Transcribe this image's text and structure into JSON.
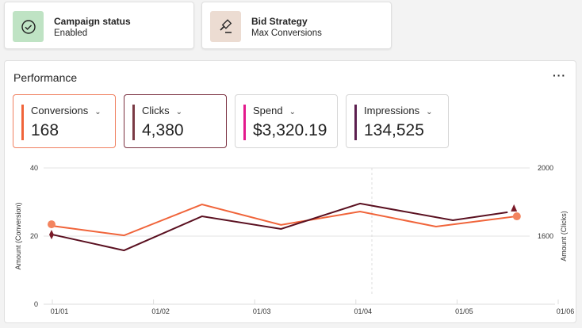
{
  "status_card": {
    "title": "Campaign status",
    "value": "Enabled",
    "icon": "check-circle-icon",
    "tile_color": "#bfe3c4"
  },
  "bid_card": {
    "title": "Bid Strategy",
    "value": "Max Conversions",
    "icon": "gavel-icon",
    "tile_color": "#ecdcd2"
  },
  "performance": {
    "title": "Performance",
    "more_label": "···",
    "metrics": [
      {
        "label": "Conversions",
        "value": "168",
        "color": "#f0643a",
        "selected": true,
        "marker": "circle"
      },
      {
        "label": "Clicks",
        "value": "4,380",
        "color": "#6b1a2a",
        "selected": true,
        "marker": "diamond"
      },
      {
        "label": "Spend",
        "value": "$3,320.19",
        "color": "#e3198c",
        "selected": false,
        "marker": "triangle-down"
      },
      {
        "label": "Impressions",
        "value": "134,525",
        "color": "#5c1f4f",
        "selected": false,
        "marker": "triangle-up"
      }
    ]
  },
  "chart_data": {
    "type": "line",
    "x_ticks": [
      "01/01",
      "01/02",
      "01/03",
      "01/04",
      "01/05",
      "01/06"
    ],
    "y_left": {
      "label": "Amount (Conversion)",
      "range": [
        0,
        40
      ],
      "ticks": [
        "0",
        "20",
        "40"
      ]
    },
    "y_right": {
      "label": "Amount (Clicks)",
      "range": [
        1200,
        2000
      ],
      "ticks": [
        "1600",
        "2000"
      ]
    },
    "grid": true,
    "series": [
      {
        "name": "Conversions",
        "axis": "left",
        "color": "#f0643a",
        "x": [
          "01/01 00:00",
          "01/01 17:00",
          "01/02 11:30",
          "01/03 06:15",
          "01/04 01:00",
          "01/04 19:00",
          "01/05 14:00"
        ],
        "y": [
          23.0,
          20.2,
          29.3,
          23.3,
          27.2,
          22.8,
          25.8
        ]
      },
      {
        "name": "Clicks",
        "axis": "right",
        "color": "#5a1020",
        "x": [
          "01/01 00:00",
          "01/01 17:00",
          "01/02 11:30",
          "01/03 06:15",
          "01/04 01:00",
          "01/04 23:00",
          "01/05 12:00"
        ],
        "y": [
          1609,
          1516,
          1716,
          1642,
          1791,
          1693,
          1740
        ]
      }
    ]
  }
}
